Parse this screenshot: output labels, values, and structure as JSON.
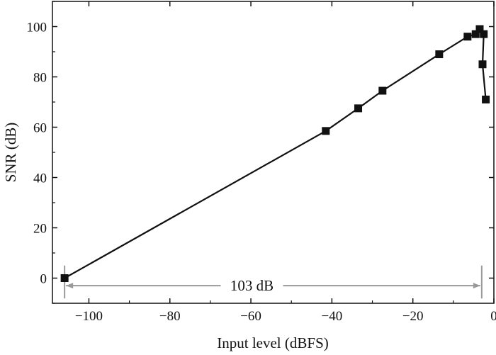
{
  "chart_data": {
    "type": "line",
    "title": "",
    "xlabel": "Input level (dBFS)",
    "ylabel": "SNR (dB)",
    "xlim": [
      -109,
      0
    ],
    "ylim": [
      -10,
      110
    ],
    "x_ticks": [
      -100,
      -80,
      -60,
      -40,
      -20,
      0
    ],
    "y_ticks": [
      0,
      20,
      40,
      60,
      80,
      100
    ],
    "x_tick_labels": [
      "−100",
      "−80",
      "−60",
      "−40",
      "−20",
      "0"
    ],
    "y_tick_labels": [
      "0",
      "20",
      "40",
      "60",
      "80",
      "100"
    ],
    "grid": false,
    "legend": "none",
    "series": [
      {
        "marker": "square",
        "color": "#111111",
        "points": [
          {
            "x": -106,
            "y": 0
          },
          {
            "x": -41.5,
            "y": 58.5
          },
          {
            "x": -33.5,
            "y": 67.5
          },
          {
            "x": -27.5,
            "y": 74.5
          },
          {
            "x": -13.5,
            "y": 89
          },
          {
            "x": -6.5,
            "y": 96
          },
          {
            "x": -4.5,
            "y": 97
          },
          {
            "x": -3.5,
            "y": 99
          },
          {
            "x": -2.5,
            "y": 97
          },
          {
            "x": -2.8,
            "y": 85
          },
          {
            "x": -2.0,
            "y": 71
          }
        ]
      }
    ],
    "annotations": [
      {
        "type": "dimension",
        "text": "103 dB",
        "x_start": -106,
        "x_end": -3,
        "y": -3,
        "color": "#999999"
      }
    ]
  }
}
